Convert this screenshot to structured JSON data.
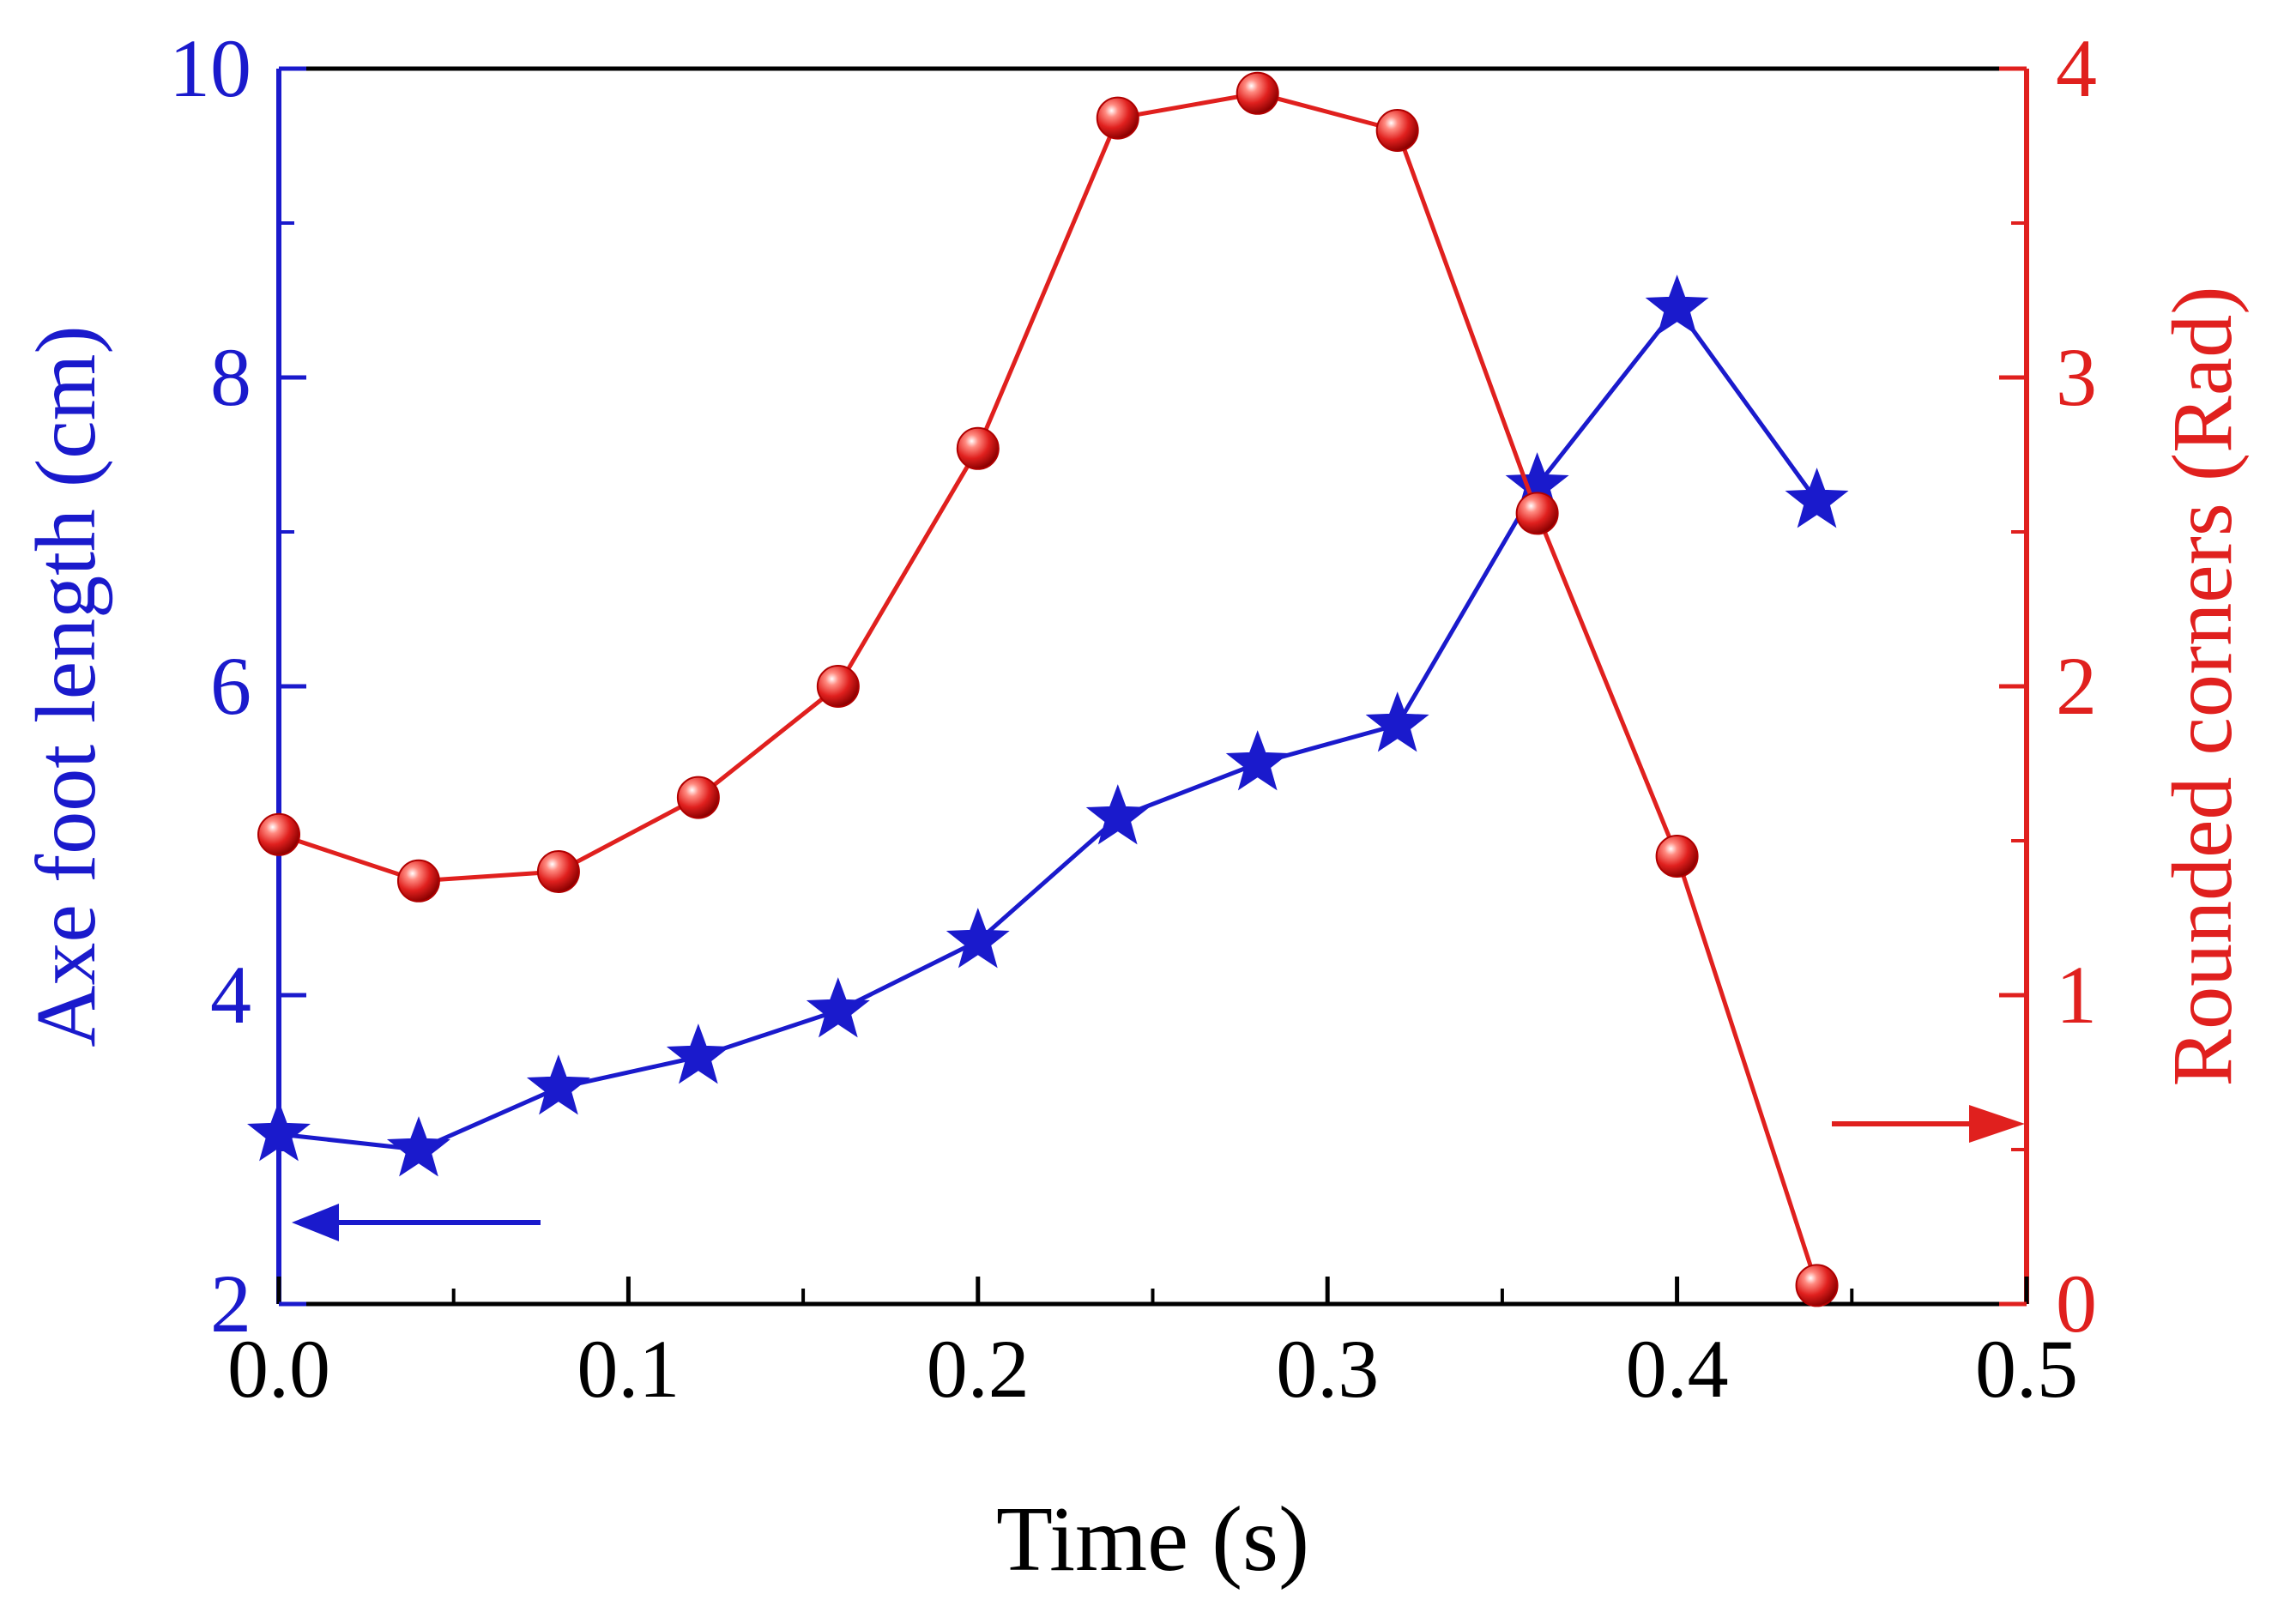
{
  "chart_data": {
    "type": "line",
    "title": "",
    "xlabel": "Time (s)",
    "xlim": [
      0.0,
      0.5
    ],
    "x_ticks": [
      "0.0",
      "0.1",
      "0.2",
      "0.3",
      "0.4",
      "0.5"
    ],
    "y_left": {
      "label": "Axe foot length (cm)",
      "lim": [
        2,
        10
      ],
      "ticks": [
        "2",
        "4",
        "6",
        "8",
        "10"
      ],
      "color": "#1a1acc"
    },
    "y_right": {
      "label": "Rounded corners (Rad)",
      "lim": [
        0,
        4
      ],
      "ticks": [
        "0",
        "1",
        "2",
        "3",
        "4"
      ],
      "color": "#e0201e"
    },
    "grid": false,
    "legend": "none",
    "series": [
      {
        "name": "Axe foot length",
        "axis": "left",
        "marker": "star",
        "color": "#1a1acc",
        "x": [
          0.0,
          0.04,
          0.08,
          0.12,
          0.16,
          0.2,
          0.24,
          0.28,
          0.32,
          0.36,
          0.4,
          0.44
        ],
        "values": [
          3.1,
          3.0,
          3.4,
          3.6,
          3.9,
          4.35,
          5.15,
          5.5,
          5.75,
          7.3,
          8.45,
          7.2
        ]
      },
      {
        "name": "Rounded corners",
        "axis": "right",
        "marker": "sphere",
        "color": "#e0201e",
        "x": [
          0.0,
          0.04,
          0.08,
          0.12,
          0.16,
          0.2,
          0.24,
          0.28,
          0.32,
          0.36,
          0.4,
          0.44
        ],
        "values": [
          1.52,
          1.37,
          1.4,
          1.64,
          2.0,
          2.77,
          3.84,
          3.92,
          3.8,
          2.56,
          1.45,
          0.06
        ]
      }
    ],
    "annotations": [
      {
        "type": "arrow",
        "direction": "left",
        "points_to": "left-axis",
        "color": "#1a1acc"
      },
      {
        "type": "arrow",
        "direction": "right",
        "points_to": "right-axis",
        "color": "#e0201e"
      }
    ]
  }
}
